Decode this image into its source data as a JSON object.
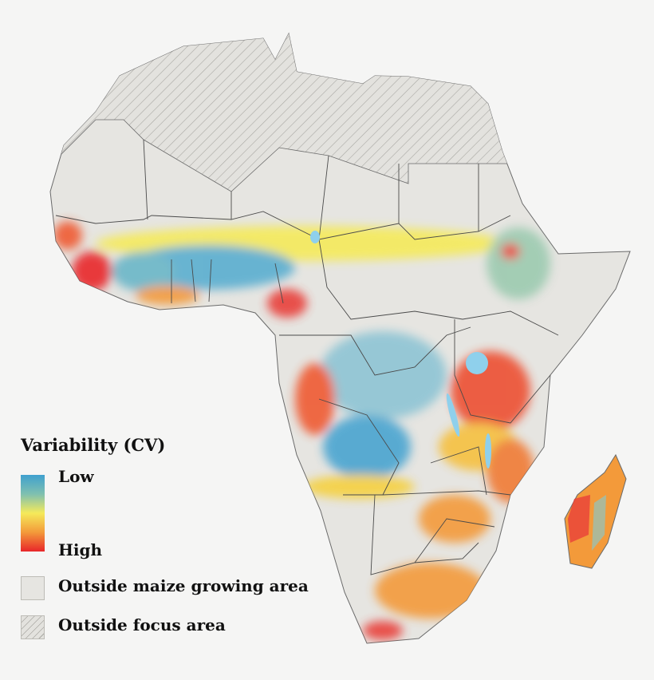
{
  "legend": {
    "title": "Variability (CV)",
    "low_label": "Low",
    "high_label": "High",
    "outside_maize_label": "Outside maize growing area",
    "outside_focus_label": "Outside focus area"
  },
  "colors": {
    "low": "#3fa0cf",
    "mid": "#f5ea5a",
    "high": "#e8262a",
    "land": "#e6e5e1",
    "border": "#4a4a4a",
    "water": "#8fd0ec",
    "background": "#f5f5f4"
  }
}
